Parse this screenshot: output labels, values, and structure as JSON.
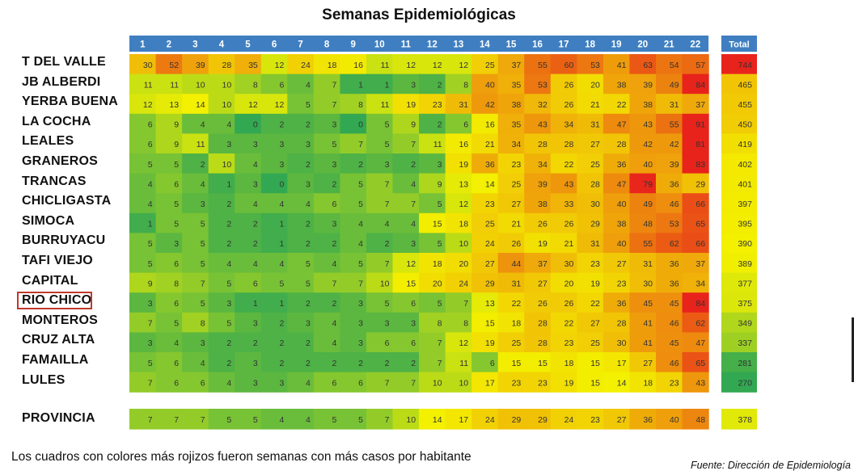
{
  "chart_data": {
    "type": "heatmap",
    "title": "Semanas Epidemiológicas",
    "columns": [
      "1",
      "2",
      "3",
      "4",
      "5",
      "6",
      "7",
      "8",
      "9",
      "10",
      "11",
      "12",
      "13",
      "14",
      "15",
      "16",
      "17",
      "18",
      "19",
      "20",
      "21",
      "22"
    ],
    "total_label": "Total",
    "rows": [
      {
        "name": "T DEL VALLE",
        "values": [
          30,
          52,
          39,
          28,
          35,
          12,
          24,
          18,
          16,
          11,
          12,
          12,
          12,
          25,
          37,
          55,
          60,
          53,
          41,
          63,
          54,
          57
        ],
        "total": 744
      },
      {
        "name": "JB ALBERDI",
        "values": [
          11,
          11,
          10,
          10,
          8,
          6,
          4,
          7,
          1,
          1,
          3,
          2,
          8,
          40,
          35,
          53,
          26,
          20,
          38,
          39,
          49,
          84
        ],
        "total": 465
      },
      {
        "name": "YERBA BUENA",
        "values": [
          12,
          13,
          14,
          10,
          12,
          12,
          5,
          7,
          8,
          11,
          19,
          23,
          31,
          42,
          38,
          32,
          26,
          21,
          22,
          38,
          31,
          37
        ],
        "total": 455
      },
      {
        "name": "LA COCHA",
        "values": [
          6,
          9,
          4,
          4,
          0,
          2,
          2,
          3,
          0,
          5,
          9,
          2,
          6,
          16,
          35,
          43,
          34,
          31,
          47,
          43,
          55,
          91
        ],
        "total": 450
      },
      {
        "name": "LEALES",
        "values": [
          6,
          9,
          11,
          3,
          3,
          3,
          3,
          5,
          7,
          5,
          7,
          11,
          16,
          21,
          34,
          28,
          28,
          27,
          28,
          42,
          42,
          81
        ],
        "total": 419
      },
      {
        "name": "GRANEROS",
        "values": [
          5,
          5,
          2,
          10,
          4,
          3,
          2,
          3,
          2,
          3,
          2,
          3,
          19,
          36,
          23,
          34,
          22,
          25,
          36,
          40,
          39,
          83
        ],
        "total": 402
      },
      {
        "name": "TRANCAS",
        "values": [
          4,
          6,
          4,
          1,
          3,
          0,
          3,
          2,
          5,
          7,
          4,
          9,
          13,
          14,
          25,
          39,
          43,
          28,
          47,
          79,
          36,
          29
        ],
        "total": 401
      },
      {
        "name": "CHICLIGASTA",
        "values": [
          4,
          5,
          3,
          2,
          4,
          4,
          4,
          6,
          5,
          7,
          7,
          5,
          12,
          23,
          27,
          38,
          33,
          30,
          40,
          49,
          46,
          66
        ],
        "total": 397
      },
      {
        "name": "SIMOCA",
        "values": [
          1,
          5,
          5,
          2,
          2,
          1,
          2,
          3,
          4,
          4,
          4,
          15,
          18,
          25,
          21,
          26,
          26,
          29,
          38,
          48,
          53,
          65
        ],
        "total": 395
      },
      {
        "name": "BURRUYACU",
        "values": [
          5,
          3,
          5,
          2,
          2,
          1,
          2,
          2,
          4,
          2,
          3,
          5,
          10,
          24,
          26,
          19,
          21,
          31,
          40,
          55,
          62,
          66
        ],
        "total": 390
      },
      {
        "name": "TAFI VIEJO",
        "values": [
          5,
          6,
          5,
          4,
          4,
          4,
          5,
          4,
          5,
          7,
          12,
          18,
          20,
          27,
          44,
          37,
          30,
          23,
          27,
          31,
          36,
          37
        ],
        "total": 389
      },
      {
        "name": "CAPITAL",
        "values": [
          9,
          8,
          7,
          5,
          6,
          5,
          5,
          7,
          7,
          10,
          15,
          20,
          24,
          29,
          31,
          27,
          20,
          19,
          23,
          30,
          36,
          34
        ],
        "total": 377
      },
      {
        "name": "RIO CHICO",
        "values": [
          3,
          6,
          5,
          3,
          1,
          1,
          2,
          2,
          3,
          5,
          6,
          5,
          7,
          13,
          22,
          26,
          26,
          22,
          36,
          45,
          45,
          84
        ],
        "total": 375
      },
      {
        "name": "MONTEROS",
        "values": [
          7,
          5,
          8,
          5,
          3,
          2,
          3,
          4,
          3,
          3,
          3,
          8,
          8,
          15,
          18,
          28,
          22,
          27,
          28,
          41,
          46,
          62
        ],
        "total": 349
      },
      {
        "name": "CRUZ ALTA",
        "values": [
          3,
          4,
          3,
          2,
          2,
          2,
          2,
          4,
          3,
          6,
          6,
          7,
          12,
          19,
          25,
          28,
          23,
          25,
          30,
          41,
          45,
          47
        ],
        "total": 337
      },
      {
        "name": "FAMAILLA",
        "values": [
          5,
          6,
          4,
          2,
          3,
          2,
          2,
          2,
          2,
          2,
          2,
          7,
          11,
          6,
          15,
          15,
          18,
          15,
          17,
          27,
          46,
          65
        ],
        "total": 281
      },
      {
        "name": "LULES",
        "values": [
          7,
          6,
          6,
          4,
          3,
          3,
          4,
          6,
          6,
          7,
          7,
          10,
          10,
          17,
          23,
          23,
          19,
          15,
          14,
          18,
          23,
          43
        ],
        "total": 270
      }
    ],
    "summary_row": {
      "name": "PROVINCIA",
      "values": [
        7,
        7,
        7,
        5,
        5,
        4,
        4,
        5,
        5,
        7,
        10,
        14,
        17,
        24,
        29,
        29,
        24,
        23,
        27,
        36,
        40,
        48
      ],
      "total": 378
    },
    "highlighted_row": "RIO CHICO",
    "color_scale": {
      "low": "#33a852",
      "mid": "#f3f000",
      "high": "#e8231c",
      "header_bg": "#3f7fc1"
    }
  },
  "note": "Los cuadros con colores más rojizos fueron semanas con más casos por habitante",
  "source": "Fuente: Dirección de Epidemiología"
}
